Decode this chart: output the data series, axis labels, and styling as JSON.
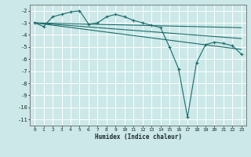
{
  "xlabel": "Humidex (Indice chaleur)",
  "bg_color": "#cce8e8",
  "grid_color": "#ffffff",
  "line_color": "#1a6b6b",
  "marker": "+",
  "xlim": [
    -0.5,
    23.5
  ],
  "ylim": [
    -11.5,
    -1.5
  ],
  "yticks": [
    -11,
    -10,
    -9,
    -8,
    -7,
    -6,
    -5,
    -4,
    -3,
    -2
  ],
  "xticks": [
    0,
    1,
    2,
    3,
    4,
    5,
    6,
    7,
    8,
    9,
    10,
    11,
    12,
    13,
    14,
    15,
    16,
    17,
    18,
    19,
    20,
    21,
    22,
    23
  ],
  "main_x": [
    0,
    1,
    2,
    3,
    4,
    5,
    6,
    7,
    8,
    9,
    10,
    11,
    12,
    13,
    14,
    15,
    16,
    17,
    18,
    19,
    20,
    21,
    22,
    23
  ],
  "main_y": [
    -3.0,
    -3.3,
    -2.5,
    -2.3,
    -2.1,
    -2.0,
    -3.1,
    -3.0,
    -2.5,
    -2.3,
    -2.5,
    -2.8,
    -3.0,
    -3.2,
    -3.4,
    -5.0,
    -6.8,
    -10.8,
    -6.3,
    -4.8,
    -4.6,
    -4.7,
    -4.9,
    -5.6
  ],
  "trend_lines": [
    {
      "x": [
        0,
        23
      ],
      "y": [
        -3.0,
        -3.4
      ]
    },
    {
      "x": [
        0,
        23
      ],
      "y": [
        -3.0,
        -4.3
      ]
    },
    {
      "x": [
        0,
        23
      ],
      "y": [
        -3.0,
        -5.2
      ]
    }
  ]
}
